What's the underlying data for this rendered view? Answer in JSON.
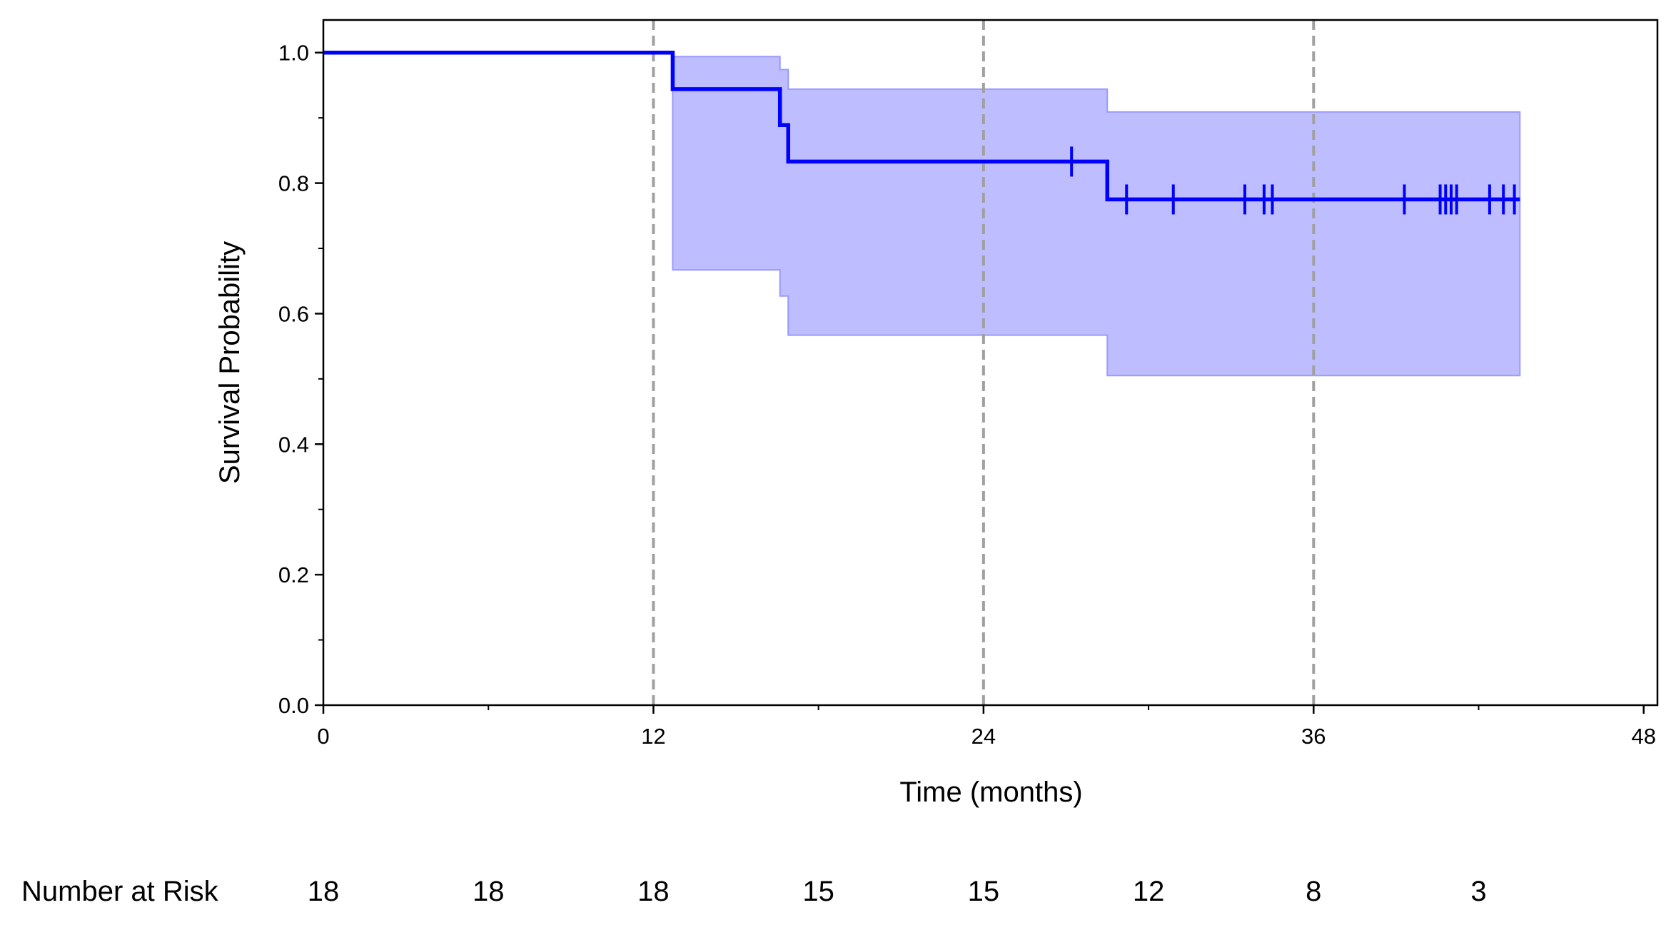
{
  "chart_data": {
    "type": "line",
    "title": "",
    "xlabel": "Time (months)",
    "ylabel": "Survival Probability",
    "xlim": [
      0,
      48.5
    ],
    "ylim": [
      0,
      1.05
    ],
    "x_ticks": [
      "0",
      "12",
      "24",
      "36",
      "48"
    ],
    "y_ticks": [
      "0.0",
      "0.2",
      "0.4",
      "0.6",
      "0.8",
      "1.0"
    ],
    "x_tick_values": [
      0,
      12,
      24,
      36,
      48
    ],
    "y_tick_values": [
      0,
      0.2,
      0.4,
      0.6,
      0.8,
      1.0
    ],
    "x_minor_ticks": [
      6,
      18,
      30,
      42
    ],
    "y_minor_ticks": [
      0.1,
      0.3,
      0.5,
      0.7,
      0.9
    ],
    "reference_lines_x": [
      12,
      24,
      36
    ],
    "grid": false,
    "colors": {
      "curve": "#0000ff",
      "ci_fill": "#bdbdff",
      "ci_edge": "#9a9aff",
      "reference_line": "#a0a0a0"
    },
    "series": [
      {
        "x": [
          0,
          12.7,
          16.6,
          16.9,
          43.5
        ],
        "y": [
          1.0,
          0.944,
          0.889,
          0.833,
          0.775
        ],
        "step_x": [
          0,
          12.7,
          12.7,
          16.6,
          16.6,
          16.9,
          16.9,
          28.5,
          28.5,
          43.5
        ],
        "step_y": [
          1.0,
          1.0,
          0.944,
          0.944,
          0.889,
          0.889,
          0.833,
          0.833,
          0.775,
          0.775
        ],
        "ci_x": [
          12.7,
          16.6,
          16.6,
          16.9,
          16.9,
          28.5,
          28.5,
          43.5
        ],
        "ci_upper": [
          0.994,
          0.994,
          0.974,
          0.974,
          0.944,
          0.944,
          0.909,
          0.909
        ],
        "ci_lower": [
          0.667,
          0.667,
          0.627,
          0.627,
          0.567,
          0.567,
          0.505,
          0.505
        ],
        "censor_times": [
          27.2,
          29.2,
          30.9,
          33.5,
          34.2,
          34.5,
          39.3,
          40.6,
          40.8,
          41.0,
          41.2,
          42.4,
          42.9,
          43.3
        ],
        "censor_values": [
          0.833,
          0.775,
          0.775,
          0.775,
          0.775,
          0.775,
          0.775,
          0.775,
          0.775,
          0.775,
          0.775,
          0.775,
          0.775,
          0.775
        ]
      }
    ],
    "risk_table": {
      "label": "Number at Risk",
      "times": [
        0,
        6,
        12,
        18,
        24,
        30,
        36,
        42
      ],
      "counts": [
        "18",
        "18",
        "18",
        "15",
        "15",
        "12",
        "8",
        "3"
      ]
    }
  }
}
